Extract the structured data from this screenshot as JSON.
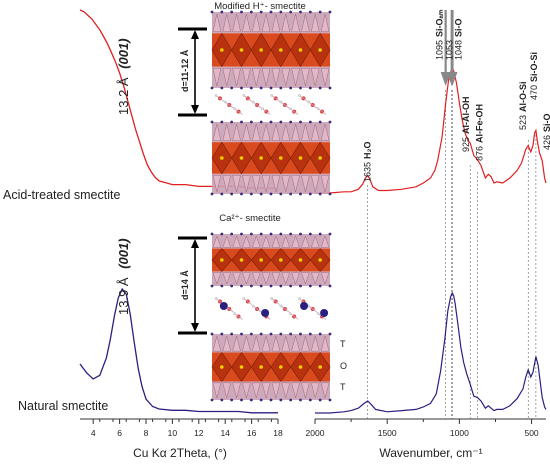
{
  "chart_data": [
    {
      "type": "line",
      "panel": "xrd",
      "xlabel": "Cu Kα 2Theta, (°)",
      "ylabel": "",
      "xlim": [
        3,
        18
      ],
      "x_ticks": [
        4,
        6,
        8,
        10,
        12,
        14,
        16,
        18
      ],
      "series": [
        {
          "name": "Acid-treated smectite",
          "color": "#e02020",
          "peak_label": "13.2 Å",
          "peak_hkl": "(001)",
          "x": [
            3.0,
            3.3,
            3.6,
            3.9,
            4.2,
            4.5,
            4.8,
            5.1,
            5.4,
            5.7,
            6.0,
            6.3,
            6.6,
            6.9,
            7.2,
            7.5,
            7.8,
            8.1,
            8.4,
            8.7,
            9.0,
            9.5,
            10,
            11,
            12,
            13,
            14,
            15,
            16,
            17,
            18
          ],
          "y": [
            1.0,
            0.99,
            0.97,
            0.95,
            0.92,
            0.89,
            0.85,
            0.81,
            0.76,
            0.71,
            0.65,
            0.58,
            0.5,
            0.42,
            0.34,
            0.27,
            0.2,
            0.14,
            0.1,
            0.07,
            0.05,
            0.04,
            0.03,
            0.03,
            0.02,
            0.02,
            0.02,
            0.02,
            0.01,
            0.01,
            0.01
          ]
        },
        {
          "name": "Natural smectite",
          "color": "#2a2080",
          "peak_label": "13.9 Å",
          "peak_hkl": "(001)",
          "x": [
            3.0,
            3.5,
            4.0,
            4.5,
            5.0,
            5.3,
            5.6,
            5.9,
            6.2,
            6.5,
            6.8,
            7.1,
            7.4,
            7.7,
            8.0,
            8.5,
            9.0,
            10,
            11,
            12,
            13,
            14,
            15,
            16,
            17,
            18
          ],
          "y": [
            0.4,
            0.33,
            0.28,
            0.31,
            0.45,
            0.6,
            0.78,
            0.93,
            1.0,
            0.96,
            0.8,
            0.58,
            0.37,
            0.22,
            0.12,
            0.06,
            0.04,
            0.03,
            0.03,
            0.02,
            0.02,
            0.02,
            0.02,
            0.01,
            0.01,
            0.01
          ]
        }
      ]
    },
    {
      "type": "line",
      "panel": "ftir",
      "xlabel": "Wavenumber, cm⁻¹",
      "ylabel": "",
      "xlim": [
        2000,
        400
      ],
      "x_ticks": [
        2000,
        1500,
        1000,
        500
      ],
      "series": [
        {
          "name": "Acid-treated smectite",
          "color": "#e02020",
          "x": [
            2000,
            1900,
            1800,
            1750,
            1700,
            1670,
            1650,
            1635,
            1620,
            1600,
            1560,
            1500,
            1400,
            1300,
            1250,
            1200,
            1170,
            1150,
            1120,
            1095,
            1075,
            1060,
            1050,
            1040,
            1020,
            1000,
            980,
            960,
            940,
            925,
            900,
            876,
            850,
            820,
            800,
            780,
            760,
            740,
            700,
            650,
            600,
            570,
            540,
            523,
            505,
            490,
            479,
            470,
            460,
            445,
            426,
            410,
            400
          ],
          "y": [
            0.0,
            0.0,
            0.01,
            0.01,
            0.03,
            0.07,
            0.12,
            0.14,
            0.11,
            0.05,
            0.02,
            0.02,
            0.03,
            0.05,
            0.08,
            0.12,
            0.18,
            0.26,
            0.45,
            0.72,
            0.9,
            0.97,
            1.0,
            0.98,
            0.88,
            0.72,
            0.58,
            0.48,
            0.42,
            0.4,
            0.3,
            0.27,
            0.22,
            0.12,
            0.15,
            0.13,
            0.08,
            0.09,
            0.08,
            0.12,
            0.18,
            0.24,
            0.35,
            0.38,
            0.33,
            0.38,
            0.48,
            0.5,
            0.42,
            0.32,
            0.26,
            0.12,
            0.08
          ]
        },
        {
          "name": "Natural smectite",
          "color": "#2a2080",
          "x": [
            2000,
            1900,
            1800,
            1750,
            1700,
            1660,
            1635,
            1610,
            1580,
            1500,
            1400,
            1300,
            1250,
            1200,
            1160,
            1130,
            1100,
            1080,
            1060,
            1050,
            1040,
            1030,
            1010,
            990,
            970,
            950,
            925,
            900,
            876,
            850,
            820,
            800,
            780,
            760,
            740,
            700,
            650,
            600,
            560,
            540,
            523,
            505,
            490,
            470,
            455,
            440,
            426,
            410,
            400
          ],
          "y": [
            0.0,
            0.0,
            0.01,
            0.02,
            0.04,
            0.08,
            0.1,
            0.07,
            0.03,
            0.01,
            0.02,
            0.03,
            0.05,
            0.08,
            0.16,
            0.35,
            0.62,
            0.85,
            0.97,
            1.0,
            0.98,
            0.92,
            0.74,
            0.55,
            0.42,
            0.33,
            0.24,
            0.14,
            0.13,
            0.1,
            0.04,
            0.06,
            0.04,
            0.02,
            0.03,
            0.03,
            0.06,
            0.12,
            0.2,
            0.3,
            0.36,
            0.3,
            0.34,
            0.47,
            0.4,
            0.26,
            0.13,
            0.05,
            0.03
          ]
        }
      ],
      "reference_lines": [
        1635,
        1095,
        1053,
        1048,
        925,
        876,
        523,
        470
      ],
      "arrows": [
        1095,
        1053,
        1048
      ],
      "peak_labels": [
        {
          "wn": 1635,
          "number": "1635",
          "assign": "H₂O"
        },
        {
          "wn": 1095,
          "number": "1095",
          "assign": "Si-Oₐₘ"
        },
        {
          "wn": 1053,
          "number": "1053",
          "assign": ""
        },
        {
          "wn": 1048,
          "number": "1048",
          "assign": "Si-O"
        },
        {
          "wn": 925,
          "number": "925",
          "assign": "Al-Al-OH"
        },
        {
          "wn": 876,
          "number": "876",
          "assign": "Al-Fe-OH"
        },
        {
          "wn": 523,
          "number": "523",
          "assign": "Al-O-Si"
        },
        {
          "wn": 470,
          "number": "470",
          "assign": "Si-O-Si"
        },
        {
          "wn": 426,
          "number": "426",
          "assign": "Si-O"
        }
      ]
    }
  ],
  "structures": {
    "top_title": "Modified H⁺- smectite",
    "top_spacing": "d=11-12 Å",
    "bottom_title": "Ca²⁺- smectite",
    "bottom_spacing": "d=14 Å",
    "layer_labels": [
      "T",
      "O",
      "T"
    ]
  },
  "colors": {
    "acid": "#e02020",
    "natural": "#2a2080",
    "octahedra": "#d94a1e",
    "tetrahedra": "#c9a0b4"
  }
}
